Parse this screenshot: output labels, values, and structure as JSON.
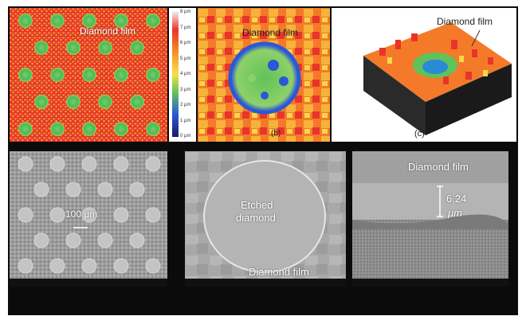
{
  "panels": {
    "a": {
      "label": "Diamond film"
    },
    "b": {
      "label": "Diamond film",
      "letter": "(b)"
    },
    "c": {
      "label": "Diamond film",
      "letter": "(c)"
    },
    "d": {
      "scale_label": "100 μm"
    },
    "e": {
      "label_etched_line1": "Etched",
      "label_etched_line2": "diamond",
      "label_film": "Diamond film"
    },
    "f": {
      "label": "Diamond film",
      "thickness_value": "6.24",
      "thickness_unit": "μm"
    }
  },
  "colorbar": {
    "ticks": [
      "8 μm",
      "7 μm",
      "6 μm",
      "5 μm",
      "4 μm",
      "3 μm",
      "2 μm",
      "1 μm",
      "0 μm"
    ]
  },
  "colors": {
    "background": "#0b0b0b",
    "heat_red": "#e8352a",
    "heat_orange": "#f79a2a",
    "heat_yellow": "#f7e04a",
    "heat_green": "#5fc25a",
    "heat_blue": "#2b58d6",
    "sem_gray": "#9a9a9a"
  }
}
